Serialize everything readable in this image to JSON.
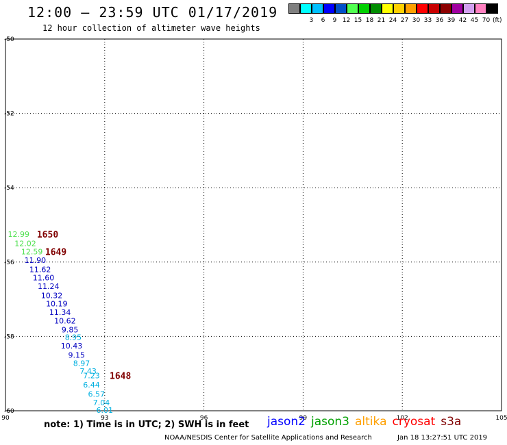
{
  "title": "12:00 — 23:59 UTC 01/17/2019",
  "subtitle": "12 hour collection of altimeter wave heights",
  "colorbar": {
    "unit": "(ft)",
    "entries": [
      {
        "label": "",
        "color": "#7f7f7f"
      },
      {
        "label": "3",
        "color": "#00ffff"
      },
      {
        "label": "6",
        "color": "#00c0ff"
      },
      {
        "label": "9",
        "color": "#0000ff"
      },
      {
        "label": "12",
        "color": "#0050c8"
      },
      {
        "label": "15",
        "color": "#50ff50"
      },
      {
        "label": "18",
        "color": "#00d000"
      },
      {
        "label": "21",
        "color": "#008c00"
      },
      {
        "label": "24",
        "color": "#ffff00"
      },
      {
        "label": "27",
        "color": "#ffd000"
      },
      {
        "label": "30",
        "color": "#ffa000"
      },
      {
        "label": "33",
        "color": "#ff0000"
      },
      {
        "label": "36",
        "color": "#c80000"
      },
      {
        "label": "39",
        "color": "#8c0000"
      },
      {
        "label": "42",
        "color": "#a000a0"
      },
      {
        "label": "45",
        "color": "#d2a0f0"
      },
      {
        "label": "70",
        "color": "#ff80c0"
      },
      {
        "label": "",
        "color": "#000000"
      }
    ]
  },
  "map": {
    "x_ticks": [
      "90",
      "93",
      "96",
      "99",
      "102",
      "105"
    ],
    "y_ticks": [
      "-50",
      "-52",
      "-54",
      "-56",
      "-58",
      "-60"
    ],
    "observations": [
      {
        "text": "12.99",
        "lon": 90.4,
        "lat": -55.25,
        "color": "#50e050"
      },
      {
        "text": "12.02",
        "lon": 90.6,
        "lat": -55.5,
        "color": "#50e050"
      },
      {
        "text": "12.59",
        "lon": 90.8,
        "lat": -55.72,
        "color": "#50e050"
      },
      {
        "text": "11.90",
        "lon": 90.9,
        "lat": -55.95,
        "color": "#0000c0"
      },
      {
        "text": "11.62",
        "lon": 91.05,
        "lat": -56.2,
        "color": "#0000c0"
      },
      {
        "text": "11.60",
        "lon": 91.15,
        "lat": -56.42,
        "color": "#0000c0"
      },
      {
        "text": "11.24",
        "lon": 91.3,
        "lat": -56.65,
        "color": "#0000c0"
      },
      {
        "text": "10.32",
        "lon": 91.4,
        "lat": -56.9,
        "color": "#0000c0"
      },
      {
        "text": "10.19",
        "lon": 91.55,
        "lat": -57.12,
        "color": "#0000c0"
      },
      {
        "text": "11.34",
        "lon": 91.65,
        "lat": -57.35,
        "color": "#0000c0"
      },
      {
        "text": "10.62",
        "lon": 91.8,
        "lat": -57.58,
        "color": "#0000c0"
      },
      {
        "text": "9.85",
        "lon": 91.95,
        "lat": -57.82,
        "color": "#0000c0"
      },
      {
        "text": "8.95",
        "lon": 92.05,
        "lat": -58.02,
        "color": "#00b0e0"
      },
      {
        "text": "10.43",
        "lon": 92.0,
        "lat": -58.25,
        "color": "#0000c0"
      },
      {
        "text": "9.15",
        "lon": 92.15,
        "lat": -58.5,
        "color": "#0000c0"
      },
      {
        "text": "8.97",
        "lon": 92.3,
        "lat": -58.72,
        "color": "#00b0e0"
      },
      {
        "text": "7.43",
        "lon": 92.5,
        "lat": -58.93,
        "color": "#00b0e0"
      },
      {
        "text": "7.23",
        "lon": 92.6,
        "lat": -59.05,
        "color": "#00b0e0"
      },
      {
        "text": "6.44",
        "lon": 92.6,
        "lat": -59.3,
        "color": "#00b0e0"
      },
      {
        "text": "6.57",
        "lon": 92.75,
        "lat": -59.55,
        "color": "#00b0e0"
      },
      {
        "text": "7.04",
        "lon": 92.9,
        "lat": -59.78,
        "color": "#00b0e0"
      },
      {
        "text": "6.01",
        "lon": 93.0,
        "lat": -59.98,
        "color": "#00b0e0"
      }
    ],
    "time_labels": [
      {
        "text": "1650",
        "lon": 90.95,
        "lat": -55.25,
        "color": "#800000"
      },
      {
        "text": "1649",
        "lon": 91.2,
        "lat": -55.72,
        "color": "#800000"
      },
      {
        "text": "1648",
        "lon": 93.15,
        "lat": -59.05,
        "color": "#800000"
      }
    ]
  },
  "note": "note:  1) Time is in UTC;  2) SWH is in feet",
  "legend": [
    {
      "name": "jason2",
      "color": "#0000ff"
    },
    {
      "name": "jason3",
      "color": "#00a000"
    },
    {
      "name": "altika",
      "color": "#ffa000"
    },
    {
      "name": "cryosat",
      "color": "#ff0000"
    },
    {
      "name": "s3a",
      "color": "#800000"
    }
  ],
  "credit": "NOAA/NESDIS Center for Satellite Applications and Research",
  "timestamp": "Jan 18 13:27:51 UTC 2019"
}
